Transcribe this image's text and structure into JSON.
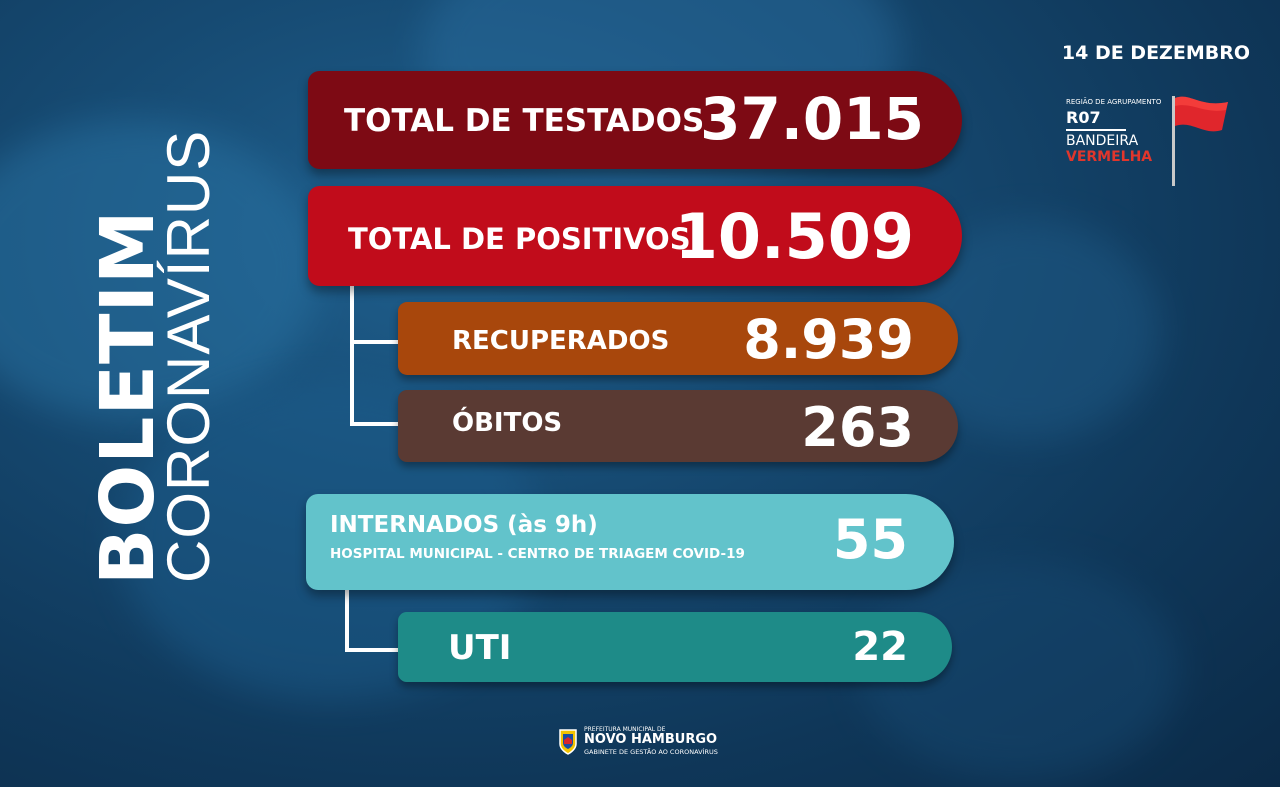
{
  "title": {
    "main": "BOLETIM",
    "sub": "CORONAVÍRUS"
  },
  "date": "14 DE DEZEMBRO",
  "region": {
    "small_label": "REGIÃO DE AGRUPAMENTO",
    "code": "R07",
    "flag_line1": "BANDEIRA",
    "flag_line2": "VERMELHA",
    "flag_color": "#e0262c"
  },
  "stats": {
    "testados": {
      "label": "TOTAL DE TESTADOS",
      "value": "37.015",
      "color": "#7d0a14"
    },
    "positivos": {
      "label": "TOTAL DE POSITIVOS",
      "value": "10.509",
      "color": "#c10c1b"
    },
    "recuperados": {
      "label": "RECUPERADOS",
      "value": "8.939",
      "color": "#a8470c"
    },
    "obitos": {
      "label": "ÓBITOS",
      "value": "263",
      "color": "#5a3a33"
    },
    "internados": {
      "label": "INTERNADOS (às 9h)",
      "sub": "HOSPITAL MUNICIPAL - CENTRO DE TRIAGEM COVID-19",
      "value": "55",
      "color": "#62c3cb"
    },
    "uti": {
      "label": "UTI",
      "value": "22",
      "color": "#1e8b88"
    }
  },
  "footer": {
    "prefeitura": "PREFEITURA MUNICIPAL DE",
    "city": "NOVO HAMBURGO",
    "gabinete": "GABINETE DE GESTÃO AO CORONAVÍRUS"
  }
}
